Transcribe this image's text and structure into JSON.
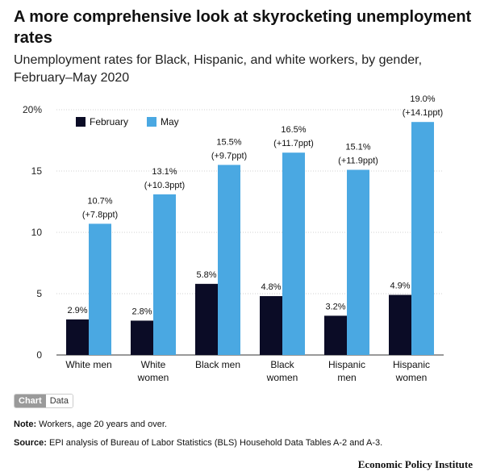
{
  "header": {
    "title": "A more comprehensive look at skyrocketing unemployment rates",
    "subtitle": "Unemployment rates for Black, Hispanic, and white workers, by gender, February–May 2020"
  },
  "toggle": {
    "chart_label": "Chart",
    "data_label": "Data"
  },
  "footer": {
    "note_label": "Note:",
    "note_text": " Workers, age 20 years and over.",
    "source_label": "Source:",
    "source_text": " EPI analysis of Bureau of Labor Statistics (BLS) Household Data Tables A-2 and A-3.",
    "brand": "Economic Policy Institute"
  },
  "chart_data": {
    "type": "bar",
    "categories": [
      [
        "White men"
      ],
      [
        "White",
        "women"
      ],
      [
        "Black men"
      ],
      [
        "Black",
        "women"
      ],
      [
        "Hispanic",
        "men"
      ],
      [
        "Hispanic",
        "women"
      ]
    ],
    "series": [
      {
        "name": "February",
        "color": "#0b0c26",
        "values": [
          2.9,
          2.8,
          5.8,
          4.8,
          3.2,
          4.9
        ],
        "labels": [
          [
            "2.9%"
          ],
          [
            "2.8%"
          ],
          [
            "5.8%"
          ],
          [
            "4.8%"
          ],
          [
            "3.2%"
          ],
          [
            "4.9%"
          ]
        ]
      },
      {
        "name": "May",
        "color": "#4aa8e2",
        "values": [
          10.7,
          13.1,
          15.5,
          16.5,
          15.1,
          19.0
        ],
        "labels": [
          [
            "10.7%",
            "(+7.8ppt)"
          ],
          [
            "13.1%",
            "(+10.3ppt)"
          ],
          [
            "15.5%",
            "(+9.7ppt)"
          ],
          [
            "16.5%",
            "(+11.7ppt)"
          ],
          [
            "15.1%",
            "(+11.9ppt)"
          ],
          [
            "19.0%",
            "(+14.1ppt)"
          ]
        ]
      }
    ],
    "yticks": [
      "0",
      "5",
      "10",
      "15",
      "20%"
    ],
    "ytick_values": [
      0,
      5,
      10,
      15,
      20
    ],
    "ylim": [
      0,
      20
    ],
    "grid": true,
    "legend_position": "top-left"
  }
}
